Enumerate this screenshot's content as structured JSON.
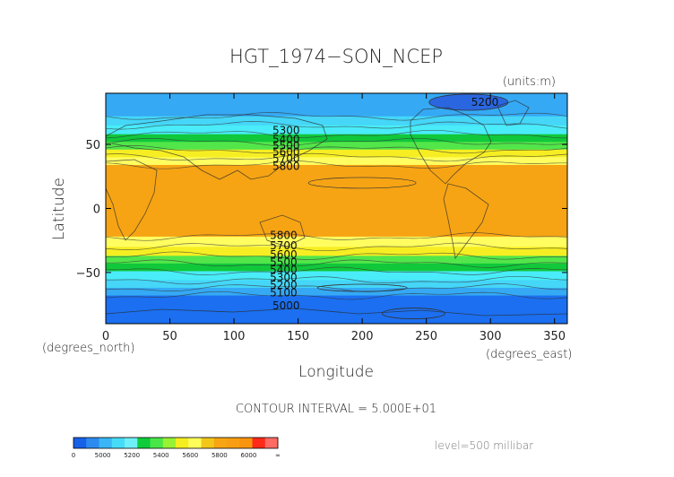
{
  "chart_data": {
    "type": "heatmap",
    "title": "HGT_1974−SON_NCEP",
    "units": "(units:m)",
    "xlabel": "Longitude",
    "ylabel": "Latitude",
    "x_unit": "(degrees_east)",
    "y_unit": "(degrees_north)",
    "xlim": [
      0,
      360
    ],
    "ylim": [
      -90,
      90
    ],
    "x_ticks": [
      0,
      50,
      100,
      150,
      200,
      250,
      300,
      350
    ],
    "y_ticks": [
      -50,
      0,
      50
    ],
    "contour_interval_text": "CONTOUR INTERVAL = 5.000E+01",
    "level_text": "level=500 millibar",
    "contour_labels": [
      {
        "text": "5200",
        "lon": 285,
        "lat": 83
      },
      {
        "text": "5300",
        "lon": 130,
        "lat": 61
      },
      {
        "text": "5400",
        "lon": 130,
        "lat": 54
      },
      {
        "text": "5500",
        "lon": 130,
        "lat": 49
      },
      {
        "text": "5600",
        "lon": 130,
        "lat": 44
      },
      {
        "text": "5700",
        "lon": 130,
        "lat": 39
      },
      {
        "text": "5800",
        "lon": 130,
        "lat": 33
      },
      {
        "text": "5800",
        "lon": 128,
        "lat": -21
      },
      {
        "text": "5700",
        "lon": 128,
        "lat": -29
      },
      {
        "text": "5600",
        "lon": 128,
        "lat": -36
      },
      {
        "text": "5500",
        "lon": 128,
        "lat": -42
      },
      {
        "text": "5400",
        "lon": 128,
        "lat": -48
      },
      {
        "text": "5300",
        "lon": 128,
        "lat": -54
      },
      {
        "text": "5200",
        "lon": 128,
        "lat": -60
      },
      {
        "text": "5100",
        "lon": 128,
        "lat": -66
      },
      {
        "text": "5000",
        "lon": 130,
        "lat": -76
      }
    ],
    "colorbar": {
      "labels": [
        "0",
        "5000",
        "5200",
        "5400",
        "5600",
        "5800",
        "6000",
        "∞"
      ],
      "colors": [
        "#1760e8",
        "#2d8bf0",
        "#3ab6f6",
        "#46dcf8",
        "#6ff0f8",
        "#0fcc3a",
        "#49e648",
        "#98f234",
        "#f4ee20",
        "#fffd5a",
        "#f3c71a",
        "#f7a513",
        "#f89e14",
        "#f9940e",
        "#ff2a18",
        "#ff6a62"
      ]
    },
    "zonal_bands": [
      {
        "lat_from": 90,
        "lat_to": 72,
        "value": 5150
      },
      {
        "lat_from": 72,
        "lat_to": 65,
        "value": 5250
      },
      {
        "lat_from": 65,
        "lat_to": 58,
        "value": 5350
      },
      {
        "lat_from": 58,
        "lat_to": 52,
        "value": 5450
      },
      {
        "lat_from": 52,
        "lat_to": 46,
        "value": 5550
      },
      {
        "lat_from": 46,
        "lat_to": 40,
        "value": 5650
      },
      {
        "lat_from": 40,
        "lat_to": 34,
        "value": 5750
      },
      {
        "lat_from": 34,
        "lat_to": -22,
        "value": 5850
      },
      {
        "lat_from": -22,
        "lat_to": -30,
        "value": 5750
      },
      {
        "lat_from": -30,
        "lat_to": -37,
        "value": 5650
      },
      {
        "lat_from": -37,
        "lat_to": -43,
        "value": 5550
      },
      {
        "lat_from": -43,
        "lat_to": -49,
        "value": 5450
      },
      {
        "lat_from": -49,
        "lat_to": -56,
        "value": 5350
      },
      {
        "lat_from": -56,
        "lat_to": -62,
        "value": 5250
      },
      {
        "lat_from": -62,
        "lat_to": -68,
        "value": 5150
      },
      {
        "lat_from": -68,
        "lat_to": -90,
        "value": 5050
      }
    ],
    "band_colors": {
      "5050": "#1b6ff0",
      "5150": "#35a9f4",
      "5250": "#45d6f8",
      "5350": "#49ecf8",
      "5450": "#10c83a",
      "5550": "#52e64a",
      "5650": "#f6ee22",
      "5750": "#fffd60",
      "5850": "#f6a414"
    }
  }
}
